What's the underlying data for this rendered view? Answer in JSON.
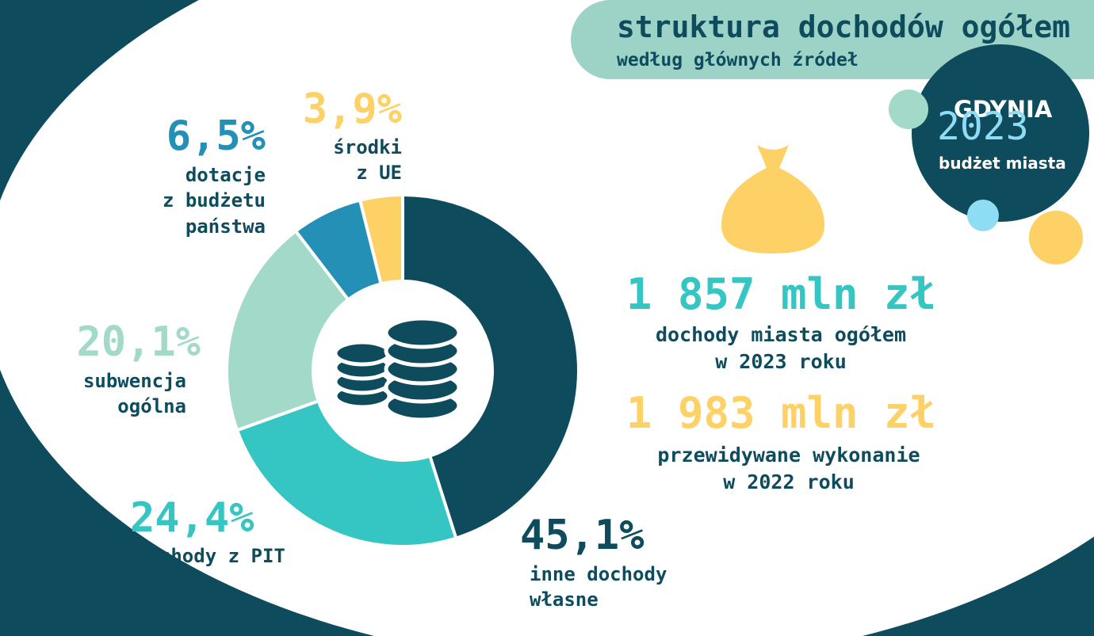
{
  "chart_data": {
    "type": "pie",
    "donut": true,
    "title": "struktura dochodów ogółem",
    "subtitle": "według głównych źródeł",
    "categories": [
      "inne dochody\nwłasne",
      "dochody z PIT",
      "subwencja\nogólna",
      "dotacje\nz budżetu\npaństwa",
      "środki\nz UE"
    ],
    "values": [
      45.1,
      24.4,
      20.1,
      6.5,
      3.9
    ],
    "value_labels": [
      "45,1%",
      "24,4%",
      "20,1%",
      "6,5%",
      "3,9%"
    ],
    "colors": [
      "#0e4c5d",
      "#35c5c2",
      "#a3d9c8",
      "#2490b5",
      "#fdd166"
    ]
  },
  "badge": {
    "city": "GDYNIA",
    "year": "2023",
    "caption": "budżet miasta"
  },
  "stats": [
    {
      "value": "1 857 mln zł",
      "label": "dochody miasta ogółem\nw 2023 roku"
    },
    {
      "value": "1 983 mln zł",
      "label": "przewidywane wykonanie\nw 2022 roku"
    }
  ]
}
